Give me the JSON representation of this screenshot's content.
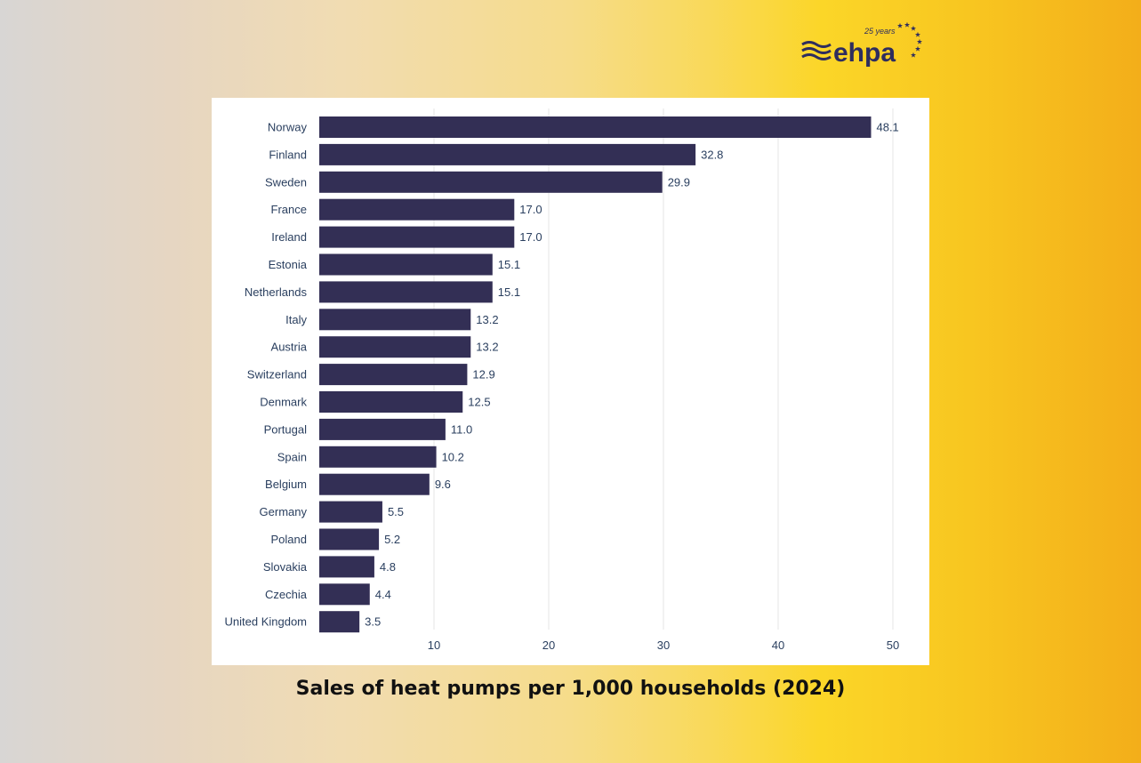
{
  "logo": {
    "text": "ehpa",
    "tagline": "25 years",
    "color": "#2e2d5e"
  },
  "chart_data": {
    "type": "bar",
    "orientation": "horizontal",
    "title": "Sales of heat pumps per 1,000 households (2024)",
    "categories": [
      "Norway",
      "Finland",
      "Sweden",
      "France",
      "Ireland",
      "Estonia",
      "Netherlands",
      "Italy",
      "Austria",
      "Switzerland",
      "Denmark",
      "Portugal",
      "Spain",
      "Belgium",
      "Germany",
      "Poland",
      "Slovakia",
      "Czechia",
      "United Kingdom"
    ],
    "values": [
      48.1,
      32.8,
      29.9,
      17.0,
      17.0,
      15.1,
      15.1,
      13.2,
      13.2,
      12.9,
      12.5,
      11.0,
      10.2,
      9.6,
      5.5,
      5.2,
      4.8,
      4.4,
      3.5
    ],
    "data_labels": [
      "48.1",
      "32.8",
      "29.9",
      "17.0",
      "17.0",
      "15.1",
      "15.1",
      "13.2",
      "13.2",
      "12.9",
      "12.5",
      "11.0",
      "10.2",
      "9.6",
      "5.5",
      "5.2",
      "4.8",
      "4.4",
      "3.5"
    ],
    "xticks": [
      10,
      20,
      30,
      40,
      50
    ],
    "xlim": [
      0,
      52
    ],
    "grid": "vertical",
    "bar_color": "#332f55"
  }
}
